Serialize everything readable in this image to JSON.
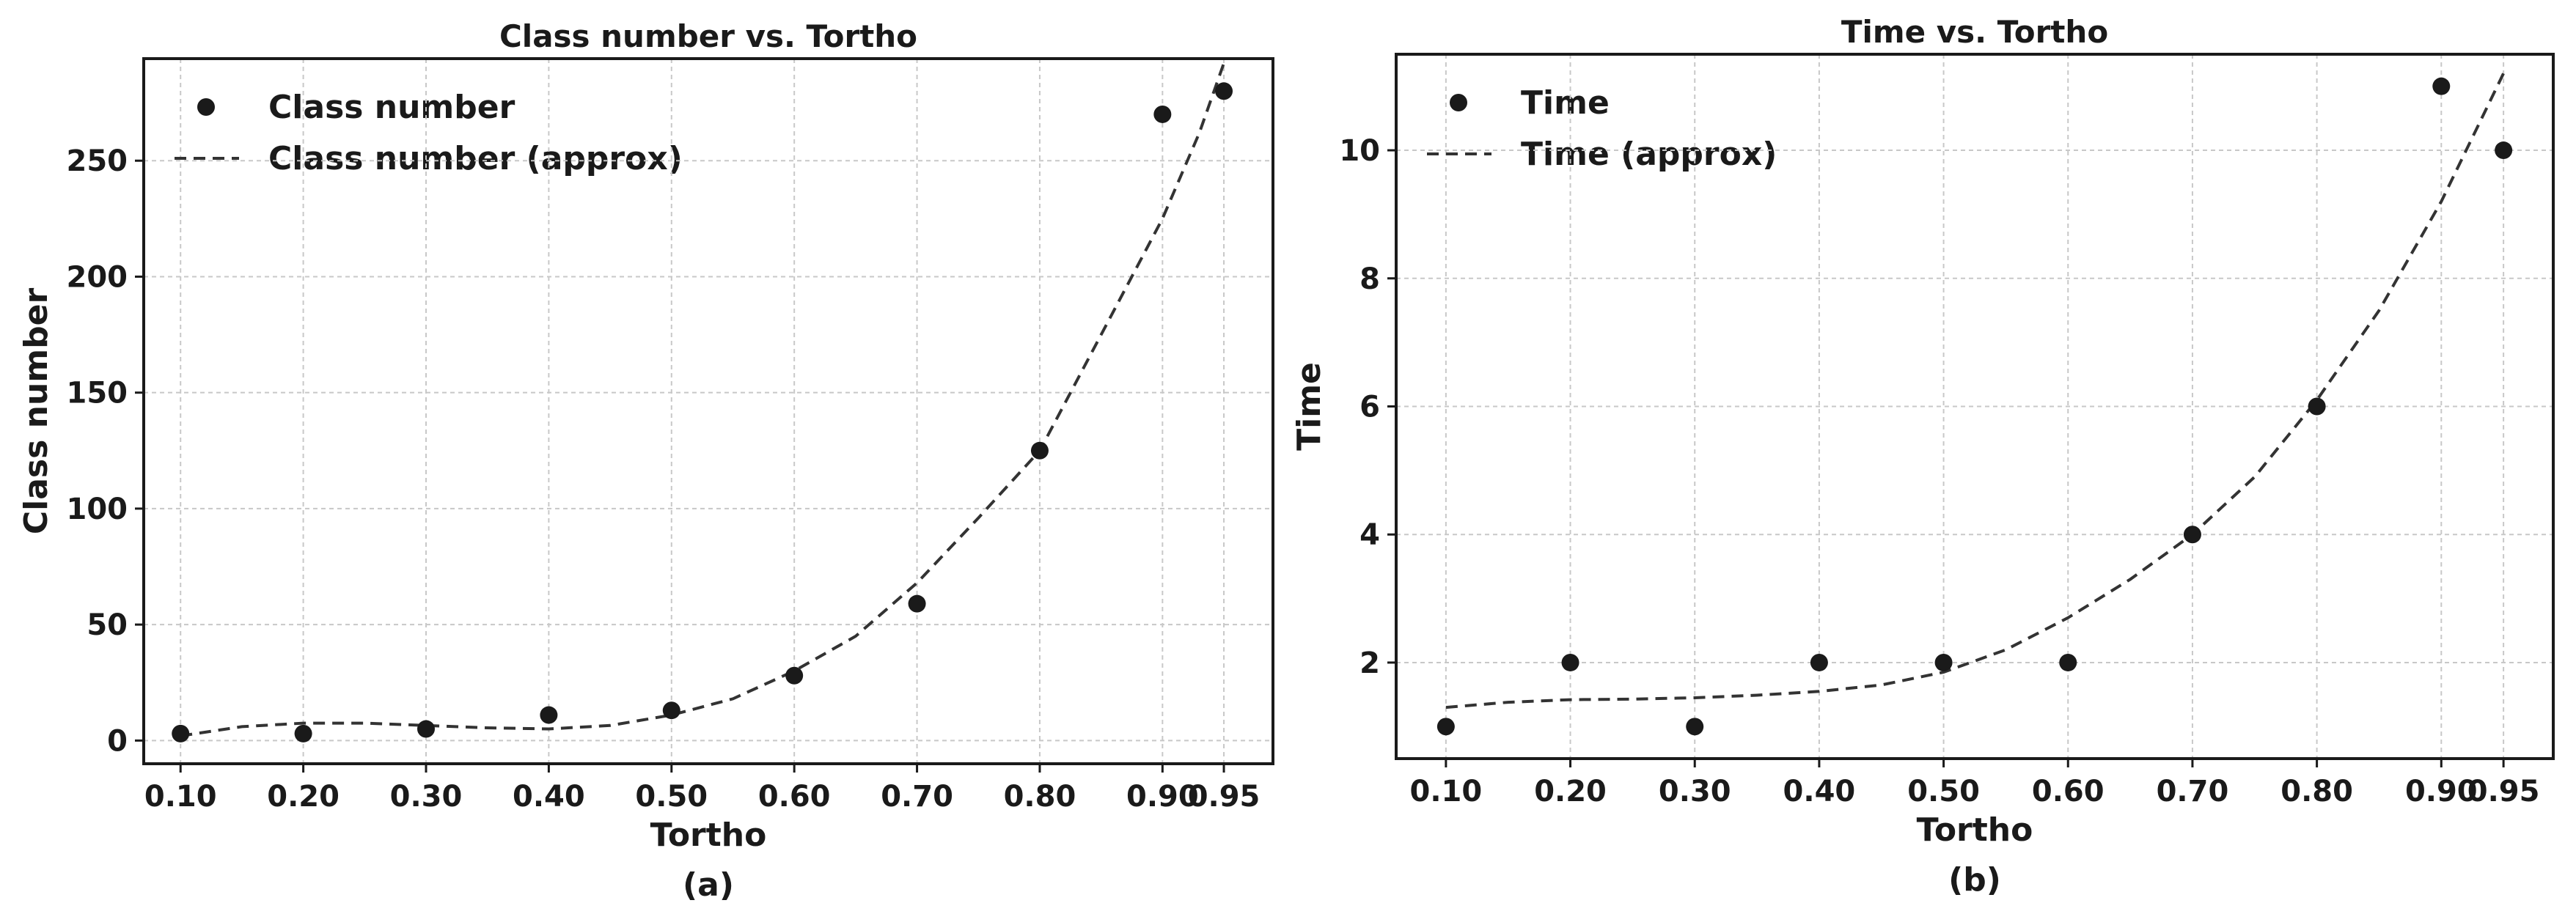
{
  "chart_data": [
    {
      "panel_label": "(a)",
      "type": "scatter",
      "title": "Class number vs. Tortho",
      "xlabel": "Tortho",
      "ylabel": "Class number",
      "x": [
        0.1,
        0.2,
        0.3,
        0.4,
        0.5,
        0.6,
        0.7,
        0.8,
        0.9,
        0.95
      ],
      "x_tick_labels": [
        "0.10",
        "0.20",
        "0.30",
        "0.40",
        "0.50",
        "0.60",
        "0.70",
        "0.80",
        "0.90",
        "0.95"
      ],
      "y_ticks": [
        0,
        50,
        100,
        150,
        200,
        250
      ],
      "xlim": [
        0.07,
        0.99
      ],
      "ylim": [
        -10,
        294
      ],
      "grid": true,
      "legend_position": "upper-left",
      "series": [
        {
          "name": "Class number",
          "kind": "points",
          "color": "#1a1a1a",
          "values": [
            3,
            3,
            5,
            11,
            13,
            28,
            59,
            125,
            270,
            280
          ]
        },
        {
          "name": "Class number (approx)",
          "kind": "dashed-line",
          "color": "#333333",
          "x": [
            0.1,
            0.15,
            0.2,
            0.25,
            0.3,
            0.35,
            0.4,
            0.45,
            0.5,
            0.55,
            0.6,
            0.65,
            0.7,
            0.75,
            0.8,
            0.85,
            0.9,
            0.93,
            0.95
          ],
          "values": [
            2,
            6,
            7.5,
            7.5,
            6.5,
            5.5,
            5,
            6.5,
            11,
            18,
            30,
            45,
            68,
            96,
            125,
            175,
            225,
            262,
            292
          ]
        }
      ]
    },
    {
      "panel_label": "(b)",
      "type": "scatter",
      "title": "Time vs. Tortho",
      "xlabel": "Tortho",
      "ylabel": "Time",
      "x": [
        0.1,
        0.2,
        0.3,
        0.4,
        0.5,
        0.6,
        0.7,
        0.8,
        0.9,
        0.95
      ],
      "x_tick_labels": [
        "0.10",
        "0.20",
        "0.30",
        "0.40",
        "0.50",
        "0.60",
        "0.70",
        "0.80",
        "0.90",
        "0.95"
      ],
      "y_ticks": [
        2,
        4,
        6,
        8,
        10
      ],
      "xlim": [
        0.06,
        0.99
      ],
      "ylim": [
        0.5,
        11.5
      ],
      "grid": true,
      "legend_position": "upper-left",
      "series": [
        {
          "name": "Time",
          "kind": "points",
          "color": "#1a1a1a",
          "values": [
            1,
            2,
            1,
            2,
            2,
            2,
            4,
            6,
            11,
            10
          ]
        },
        {
          "name": "Time (approx)",
          "kind": "dashed-line",
          "color": "#333333",
          "x": [
            0.1,
            0.15,
            0.2,
            0.25,
            0.3,
            0.35,
            0.4,
            0.45,
            0.5,
            0.55,
            0.6,
            0.65,
            0.7,
            0.75,
            0.8,
            0.85,
            0.9,
            0.95
          ],
          "values": [
            1.3,
            1.38,
            1.42,
            1.43,
            1.45,
            1.49,
            1.55,
            1.65,
            1.85,
            2.2,
            2.7,
            3.3,
            4.0,
            4.9,
            6.1,
            7.5,
            9.2,
            11.2
          ]
        }
      ]
    }
  ]
}
